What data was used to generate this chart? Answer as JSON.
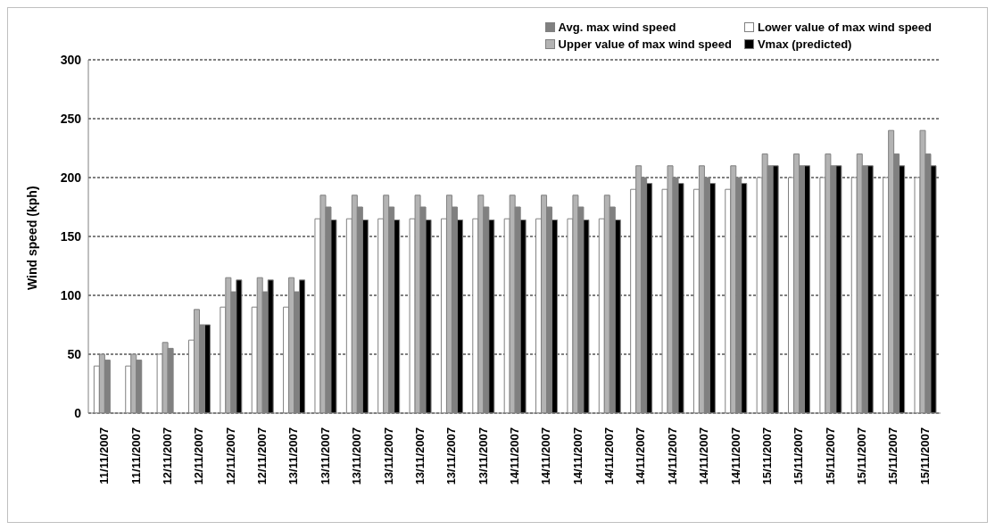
{
  "chart_data": {
    "type": "bar",
    "ylabel": "Wind speed (kph)",
    "categories": [
      "11/11/2007",
      "11/11/2007",
      "12/11/2007",
      "12/11/2007",
      "12/11/2007",
      "12/11/2007",
      "13/11/2007",
      "13/11/2007",
      "13/11/2007",
      "13/11/2007",
      "13/11/2007",
      "13/11/2007",
      "13/11/2007",
      "14/11/2007",
      "14/11/2007",
      "14/11/2007",
      "14/11/2007",
      "14/11/2007",
      "14/11/2007",
      "14/11/2007",
      "14/11/2007",
      "15/11/2007",
      "15/11/2007",
      "15/11/2007",
      "15/11/2007",
      "15/11/2007",
      "15/11/2007"
    ],
    "series": [
      {
        "name": "Lower value of max wind speed",
        "color": "#ffffff",
        "values": [
          40,
          40,
          50,
          62,
          90,
          90,
          90,
          165,
          165,
          165,
          165,
          165,
          165,
          165,
          165,
          165,
          165,
          190,
          190,
          190,
          190,
          200,
          200,
          200,
          200,
          200,
          200
        ]
      },
      {
        "name": "Upper value of max wind speed",
        "color": "#b3b3b3",
        "values": [
          50,
          50,
          60,
          88,
          115,
          115,
          115,
          185,
          185,
          185,
          185,
          185,
          185,
          185,
          185,
          185,
          185,
          210,
          210,
          210,
          210,
          220,
          220,
          220,
          220,
          240,
          240
        ]
      },
      {
        "name": "Avg. max wind speed",
        "color": "#808080",
        "values": [
          45,
          45,
          55,
          75,
          103,
          103,
          103,
          175,
          175,
          175,
          175,
          175,
          175,
          175,
          175,
          175,
          175,
          200,
          200,
          200,
          200,
          210,
          210,
          210,
          210,
          220,
          220
        ]
      },
      {
        "name": "Vmax (predicted)",
        "color": "#000000",
        "values": [
          null,
          null,
          null,
          75,
          113,
          113,
          113,
          164,
          164,
          164,
          164,
          164,
          164,
          164,
          164,
          164,
          164,
          195,
          195,
          195,
          195,
          210,
          210,
          210,
          210,
          210,
          210
        ]
      }
    ],
    "ylim": [
      0,
      300
    ],
    "yticks": [
      0,
      50,
      100,
      150,
      200,
      250,
      300
    ],
    "grid": "y",
    "legend": "top right"
  }
}
